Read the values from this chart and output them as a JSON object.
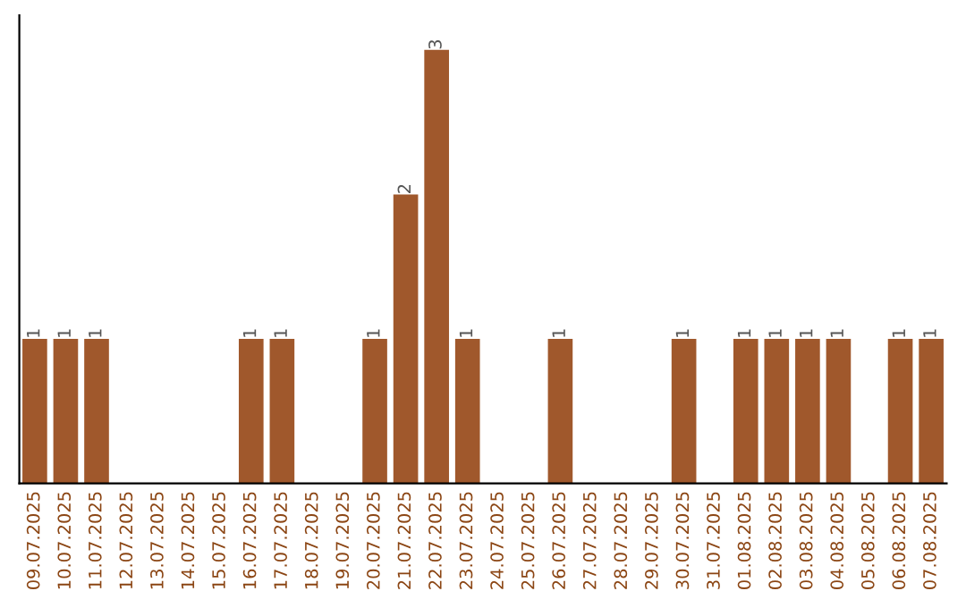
{
  "chart_data": {
    "type": "bar",
    "categories": [
      "09.07.2025",
      "10.07.2025",
      "11.07.2025",
      "12.07.2025",
      "13.07.2025",
      "14.07.2025",
      "15.07.2025",
      "16.07.2025",
      "17.07.2025",
      "18.07.2025",
      "19.07.2025",
      "20.07.2025",
      "21.07.2025",
      "22.07.2025",
      "23.07.2025",
      "24.07.2025",
      "25.07.2025",
      "26.07.2025",
      "27.07.2025",
      "28.07.2025",
      "29.07.2025",
      "30.07.2025",
      "31.07.2025",
      "01.08.2025",
      "02.08.2025",
      "03.08.2025",
      "04.08.2025",
      "05.08.2025",
      "06.08.2025",
      "07.08.2025"
    ],
    "values": [
      1,
      1,
      1,
      0,
      0,
      0,
      0,
      1,
      1,
      0,
      0,
      1,
      2,
      3,
      1,
      0,
      0,
      1,
      0,
      0,
      0,
      1,
      0,
      1,
      1,
      1,
      1,
      0,
      1,
      1
    ],
    "value_labels": [
      "1",
      "1",
      "1",
      null,
      null,
      null,
      null,
      "1",
      "1",
      null,
      null,
      "1",
      "2",
      "3",
      "1",
      null,
      null,
      "1",
      null,
      null,
      null,
      "1",
      null,
      "1",
      "1",
      "1",
      "1",
      null,
      "1",
      "1"
    ],
    "color": "#a0582c",
    "tick_labels": "x",
    "grid": false,
    "legend": false
  }
}
